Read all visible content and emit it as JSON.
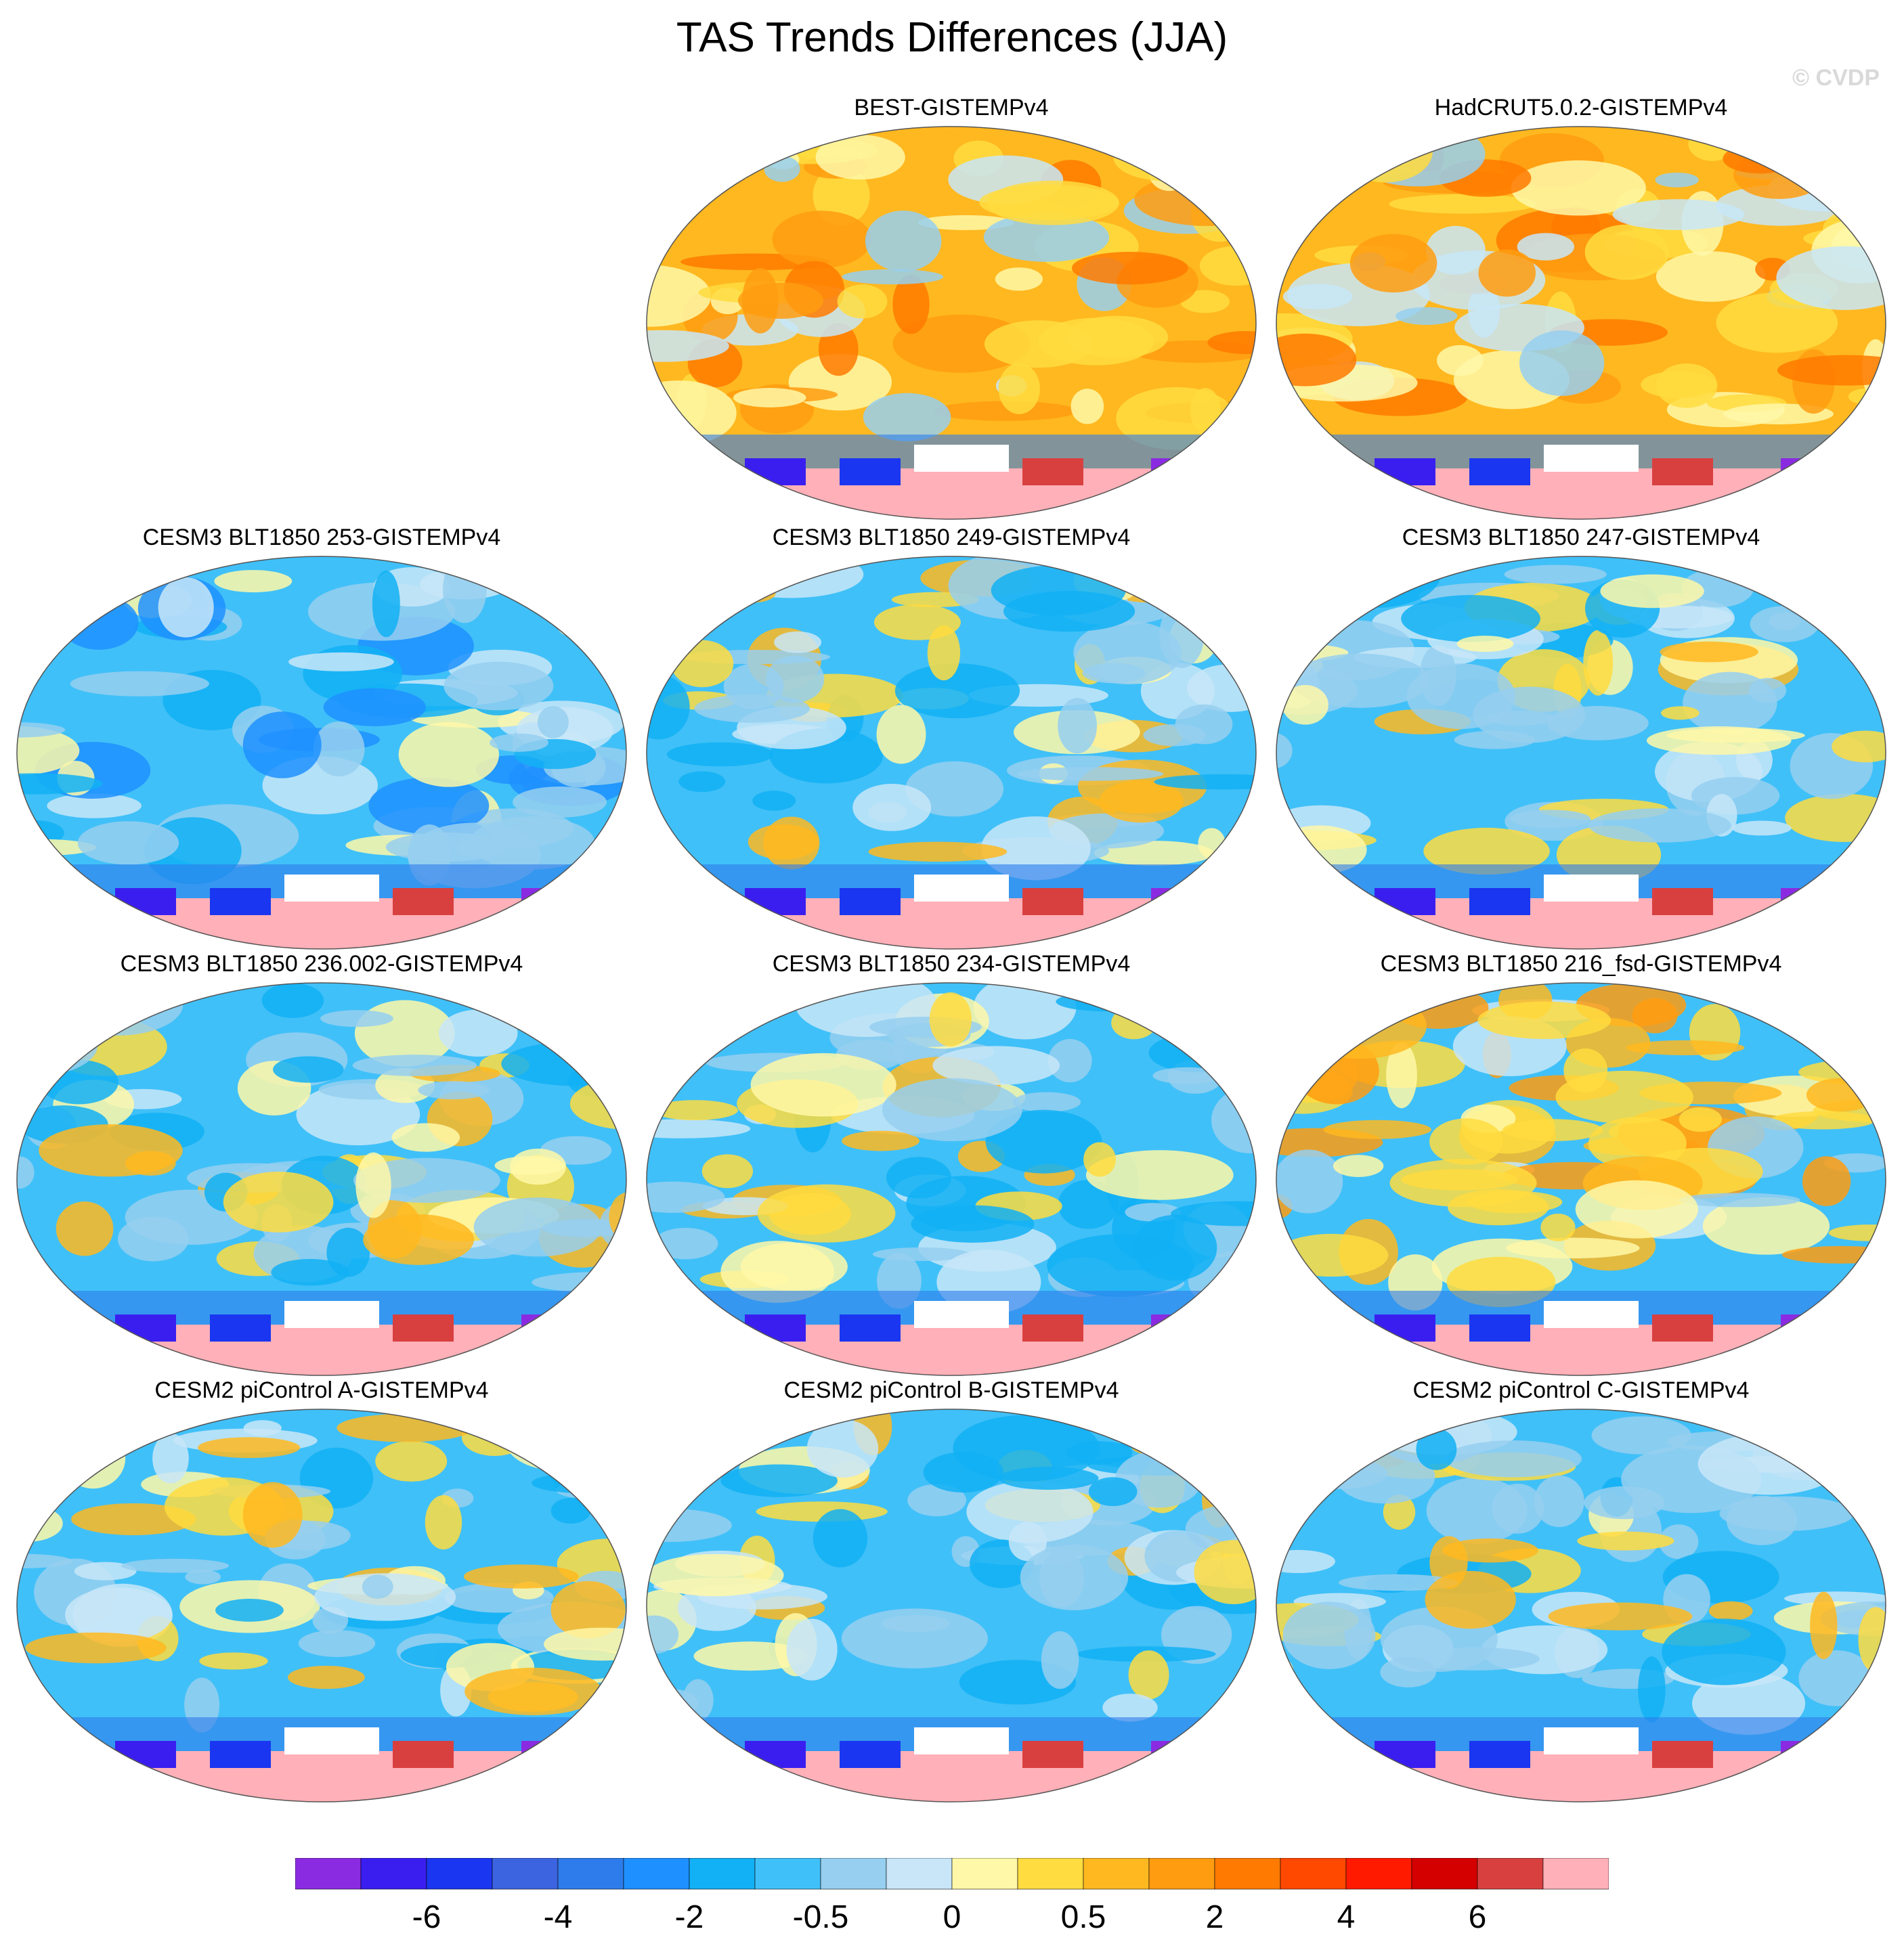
{
  "title": "TAS Trends Differences (JJA)",
  "copyright": "© CVDP",
  "panels": [
    {
      "label": "BEST-GISTEMPv4",
      "pattern": "warm"
    },
    {
      "label": "HadCRUT5.0.2-GISTEMPv4",
      "pattern": "warm"
    },
    {
      "label": "CESM3 BLT1850 253-GISTEMPv4",
      "pattern": "cool"
    },
    {
      "label": "CESM3 BLT1850 249-GISTEMPv4",
      "pattern": "mixed"
    },
    {
      "label": "CESM3 BLT1850 247-GISTEMPv4",
      "pattern": "mixed"
    },
    {
      "label": "CESM3 BLT1850 236.002-GISTEMPv4",
      "pattern": "mixed"
    },
    {
      "label": "CESM3 BLT1850 234-GISTEMPv4",
      "pattern": "mixed"
    },
    {
      "label": "CESM3 BLT1850 216_fsd-GISTEMPv4",
      "pattern": "mixed-warm"
    },
    {
      "label": "CESM2 piControl A-GISTEMPv4",
      "pattern": "mixed"
    },
    {
      "label": "CESM2 piControl B-GISTEMPv4",
      "pattern": "mixed"
    },
    {
      "label": "CESM2 piControl C-GISTEMPv4",
      "pattern": "mixed"
    }
  ],
  "colorbar": {
    "colors": [
      "#8a2be2",
      "#3a1ef0",
      "#1a36f0",
      "#3c64e0",
      "#2e7ceb",
      "#1e90ff",
      "#12b0f5",
      "#40c0f8",
      "#96cff0",
      "#c8e6f8",
      "#fff8a8",
      "#ffdc40",
      "#ffb820",
      "#ff9c10",
      "#ff7a00",
      "#ff4800",
      "#ff1a00",
      "#d40000",
      "#d84040",
      "#ffb0b8"
    ],
    "tick_labels": [
      "-6",
      "-4",
      "-2",
      "-0.5",
      "0",
      "0.5",
      "2",
      "4",
      "6"
    ]
  }
}
